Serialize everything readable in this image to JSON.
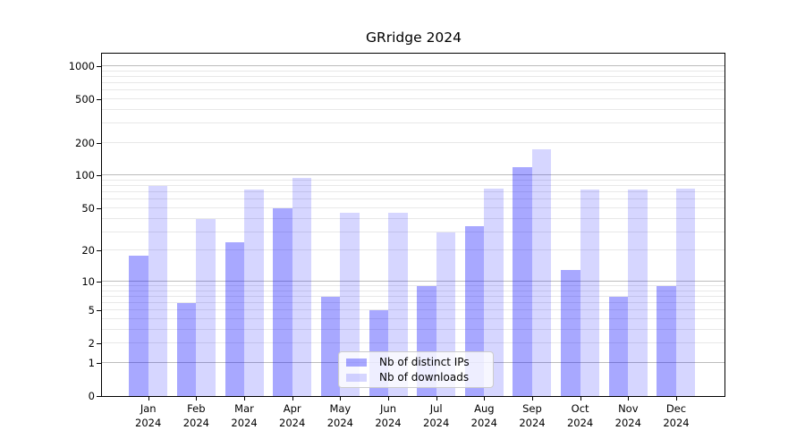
{
  "chart_data": {
    "type": "bar",
    "title": "GRridge 2024",
    "year": "2024",
    "months": [
      "Jan",
      "Feb",
      "Mar",
      "Apr",
      "May",
      "Jun",
      "Jul",
      "Aug",
      "Sep",
      "Oct",
      "Nov",
      "Dec"
    ],
    "categories": [
      "Jan 2024",
      "Feb 2024",
      "Mar 2024",
      "Apr 2024",
      "May 2024",
      "Jun 2024",
      "Jul 2024",
      "Aug 2024",
      "Sep 2024",
      "Oct 2024",
      "Nov 2024",
      "Dec 2024"
    ],
    "series": [
      {
        "name": "Nb of distinct IPs",
        "color": "rgba(0,0,255,0.34)",
        "values": [
          18,
          6,
          24,
          50,
          7,
          5,
          9,
          34,
          119,
          13,
          7,
          9
        ]
      },
      {
        "name": "Nb of downloads",
        "color": "rgba(0,0,255,0.16)",
        "values": [
          81,
          40,
          75,
          95,
          45,
          45,
          30,
          76,
          175,
          75,
          74,
          76
        ]
      }
    ],
    "y_ticks": [
      0,
      1,
      2,
      5,
      10,
      20,
      50,
      100,
      200,
      500,
      1000
    ],
    "y_scale": "log10(1+x)",
    "ylim": [
      0,
      1300
    ],
    "xlabel": "",
    "ylabel": "",
    "grid": true,
    "legend_position": "lower center"
  },
  "colors": {
    "grid_major": "#bcbcbc",
    "grid_minor": "#e8e8e8",
    "spine": "#000000",
    "text": "#000000",
    "background": "#ffffff"
  }
}
